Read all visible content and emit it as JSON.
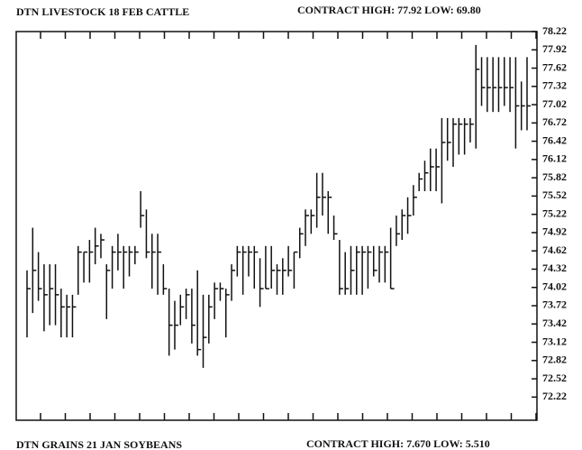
{
  "chart_data": {
    "type": "ohlc",
    "title": "DTN LIVESTOCK 18 FEB CATTLE",
    "subtitle": "CONTRACT HIGH: 77.92  LOW: 69.80",
    "color": "#111111",
    "ylim": [
      71.84,
      78.22
    ],
    "yticks": [
      78.22,
      77.92,
      77.62,
      77.32,
      77.02,
      76.72,
      76.42,
      76.12,
      75.82,
      75.52,
      75.22,
      74.92,
      74.62,
      74.32,
      74.02,
      73.72,
      73.42,
      73.12,
      72.82,
      72.52,
      72.22
    ],
    "high": [
      74.3,
      75.0,
      74.6,
      74.4,
      74.4,
      74.4,
      74.0,
      73.9,
      73.9,
      74.7,
      74.6,
      74.8,
      75.0,
      74.9,
      74.4,
      74.7,
      74.9,
      74.7,
      74.7,
      74.7,
      75.6,
      75.3,
      74.9,
      74.9,
      74.4,
      74.0,
      73.8,
      73.9,
      74.0,
      74.0,
      74.3,
      73.9,
      73.9,
      74.1,
      74.1,
      74.0,
      74.4,
      74.7,
      74.7,
      74.7,
      74.7,
      74.5,
      74.7,
      74.7,
      74.4,
      74.5,
      74.7,
      74.6,
      75.0,
      75.3,
      75.3,
      75.9,
      75.9,
      75.6,
      75.2,
      74.8,
      74.6,
      74.7,
      74.7,
      74.7,
      74.7,
      74.7,
      74.7,
      74.7,
      75.0,
      75.2,
      75.3,
      75.5,
      75.7,
      75.9,
      76.1,
      76.3,
      76.3,
      76.8,
      76.8,
      76.8,
      76.8,
      76.8,
      76.8,
      78.0,
      77.8,
      77.8,
      77.8,
      77.8,
      77.8,
      77.8,
      77.8,
      77.4,
      77.8
    ],
    "low": [
      73.2,
      73.6,
      73.8,
      73.3,
      73.4,
      73.4,
      73.2,
      73.2,
      73.2,
      73.9,
      74.1,
      74.1,
      74.4,
      74.5,
      73.5,
      74.0,
      74.3,
      74.0,
      74.2,
      74.4,
      75.0,
      74.5,
      74.0,
      73.9,
      73.9,
      72.9,
      73.0,
      73.4,
      73.5,
      73.1,
      72.9,
      72.7,
      73.1,
      73.5,
      73.8,
      73.2,
      73.8,
      74.2,
      73.9,
      74.2,
      74.0,
      73.7,
      74.0,
      74.0,
      73.9,
      73.9,
      74.2,
      74.0,
      74.5,
      74.7,
      74.9,
      75.0,
      75.2,
      74.9,
      74.8,
      73.9,
      73.9,
      73.9,
      73.9,
      73.9,
      74.0,
      74.2,
      74.1,
      74.1,
      74.0,
      74.7,
      74.8,
      74.9,
      75.2,
      75.6,
      75.6,
      75.6,
      75.6,
      75.4,
      76.1,
      76.0,
      76.2,
      76.2,
      76.4,
      76.3,
      77.0,
      76.9,
      76.9,
      76.9,
      77.0,
      76.9,
      76.3,
      76.6,
      76.6
    ],
    "close": [
      74.0,
      74.3,
      74.0,
      73.9,
      74.0,
      73.9,
      73.7,
      73.7,
      73.7,
      74.6,
      74.6,
      74.6,
      74.7,
      74.8,
      74.3,
      74.6,
      74.6,
      74.6,
      74.6,
      74.6,
      75.2,
      74.6,
      74.6,
      74.6,
      74.0,
      73.4,
      73.4,
      73.7,
      73.9,
      73.4,
      73.0,
      73.2,
      73.7,
      74.0,
      74.0,
      73.9,
      74.3,
      74.6,
      74.6,
      74.6,
      74.6,
      74.0,
      74.0,
      74.3,
      74.3,
      74.3,
      74.3,
      74.6,
      74.9,
      75.2,
      75.2,
      75.5,
      75.5,
      75.5,
      74.9,
      74.0,
      74.0,
      74.3,
      74.6,
      74.6,
      74.6,
      74.3,
      74.6,
      74.6,
      74.0,
      74.9,
      75.2,
      75.2,
      75.5,
      75.8,
      75.9,
      76.0,
      76.0,
      76.4,
      76.4,
      76.7,
      76.7,
      76.7,
      76.7,
      77.6,
      77.3,
      77.3,
      77.3,
      77.3,
      77.3,
      77.3,
      77.0,
      77.0,
      77.0
    ]
  },
  "footer": {
    "title": "DTN GRAINS 21 JAN SOYBEANS",
    "subtitle": "CONTRACT HIGH: 7.670  LOW: 5.510"
  }
}
